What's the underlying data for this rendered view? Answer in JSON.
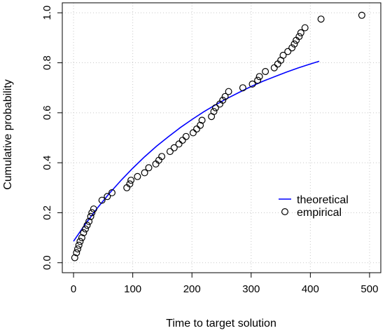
{
  "chart_data": {
    "type": "scatter",
    "xlabel": "Time to target solution",
    "ylabel": "Cumulative probability",
    "xlim": [
      0,
      500
    ],
    "ylim": [
      0,
      1
    ],
    "xticks": [
      "0",
      "100",
      "200",
      "300",
      "400",
      "500"
    ],
    "yticks": [
      "0.0",
      "0.2",
      "0.4",
      "0.6",
      "0.8",
      "1.0"
    ],
    "grid": true,
    "legend_position": "bottom-right",
    "series": [
      {
        "name": "theoretical",
        "kind": "line",
        "color": "#0000ff",
        "x": [
          0,
          20,
          40,
          60,
          80,
          100,
          120,
          140,
          160,
          180,
          200,
          220,
          240,
          260,
          280,
          300,
          320,
          340,
          360,
          380,
          400,
          415
        ],
        "y": [
          0.086,
          0.155,
          0.218,
          0.276,
          0.329,
          0.378,
          0.424,
          0.466,
          0.504,
          0.54,
          0.573,
          0.604,
          0.632,
          0.658,
          0.682,
          0.705,
          0.726,
          0.745,
          0.763,
          0.78,
          0.795,
          0.806
        ]
      },
      {
        "name": "empirical",
        "kind": "points",
        "color": "#000000",
        "x": [
          2,
          5,
          7,
          9,
          11,
          14,
          17,
          20,
          23,
          26,
          29,
          31,
          34,
          48,
          57,
          65,
          90,
          95,
          97,
          108,
          120,
          127,
          139,
          144,
          149,
          163,
          170,
          178,
          184,
          190,
          202,
          208,
          214,
          217,
          233,
          237,
          240,
          247,
          252,
          256,
          262,
          286,
          302,
          311,
          314,
          324,
          339,
          345,
          350,
          354,
          362,
          369,
          373,
          376,
          381,
          384,
          391,
          418,
          487
        ],
        "y": [
          0.02,
          0.04,
          0.055,
          0.07,
          0.085,
          0.1,
          0.12,
          0.135,
          0.15,
          0.165,
          0.185,
          0.2,
          0.215,
          0.25,
          0.265,
          0.28,
          0.3,
          0.315,
          0.33,
          0.345,
          0.36,
          0.38,
          0.395,
          0.41,
          0.425,
          0.445,
          0.46,
          0.475,
          0.49,
          0.505,
          0.52,
          0.535,
          0.55,
          0.57,
          0.585,
          0.605,
          0.62,
          0.635,
          0.65,
          0.665,
          0.685,
          0.7,
          0.715,
          0.73,
          0.745,
          0.765,
          0.78,
          0.795,
          0.81,
          0.83,
          0.845,
          0.86,
          0.875,
          0.89,
          0.905,
          0.92,
          0.94,
          0.975,
          0.99
        ]
      }
    ]
  }
}
